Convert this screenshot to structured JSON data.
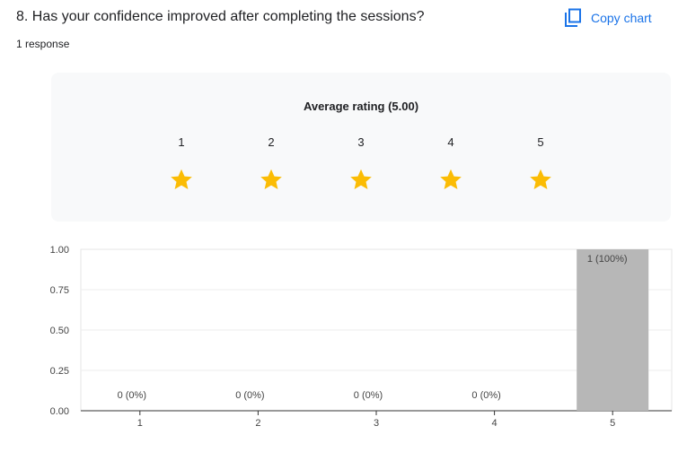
{
  "question": {
    "title": "8. Has your confidence improved after completing the sessions?",
    "response_count": "1 response",
    "copy_label": "Copy chart"
  },
  "rating": {
    "title": "Average rating (5.00)",
    "stars": [
      "1",
      "2",
      "3",
      "4",
      "5"
    ],
    "star_color": "#fbbc04"
  },
  "chart_data": {
    "type": "bar",
    "categories": [
      "1",
      "2",
      "3",
      "4",
      "5"
    ],
    "values": [
      0,
      0,
      0,
      0,
      1
    ],
    "data_labels": [
      "0 (0%)",
      "0 (0%)",
      "0 (0%)",
      "0 (0%)",
      "1 (100%)"
    ],
    "yticks": [
      "0.00",
      "0.25",
      "0.50",
      "0.75",
      "1.00"
    ],
    "ylim": [
      0,
      1
    ],
    "grid": true,
    "bar_color": "#b7b7b7",
    "accent_color": "#1a73e8"
  }
}
